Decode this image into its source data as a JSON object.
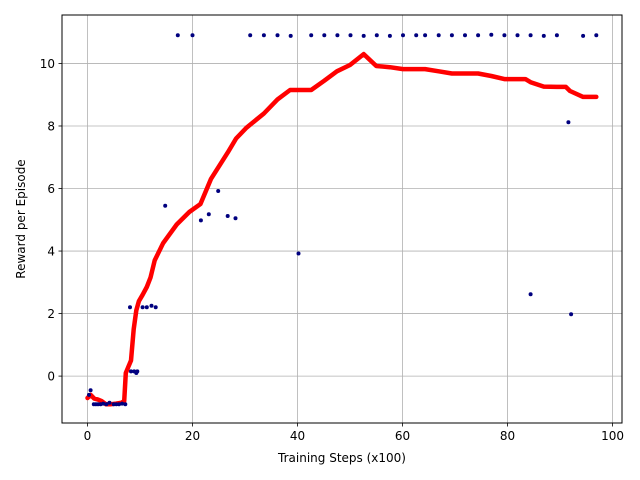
{
  "chart_data": {
    "type": "scatter",
    "title": "",
    "xlabel": "Training Steps (x100)",
    "ylabel": "Reward per Episode",
    "xlim": [
      -4.85,
      101.8
    ],
    "ylim": [
      -1.5,
      11.55
    ],
    "xticks": [
      0,
      20,
      40,
      60,
      80,
      100
    ],
    "xtick_labels": [
      "0",
      "20",
      "40",
      "60",
      "80",
      "100"
    ],
    "yticks": [
      0,
      2,
      4,
      6,
      8,
      10
    ],
    "ytick_labels": [
      "0",
      "2",
      "4",
      "6",
      "8",
      "10"
    ],
    "grid": true,
    "legend": "none",
    "series": [
      {
        "kind": "scatter",
        "color": "#00007f",
        "points": [
          [
            0.3,
            -0.6
          ],
          [
            0.6,
            -0.45
          ],
          [
            1.2,
            -0.9
          ],
          [
            1.6,
            -0.9
          ],
          [
            2.0,
            -0.9
          ],
          [
            2.5,
            -0.9
          ],
          [
            3.0,
            -0.88
          ],
          [
            3.6,
            -0.9
          ],
          [
            4.2,
            -0.85
          ],
          [
            5.0,
            -0.9
          ],
          [
            5.5,
            -0.9
          ],
          [
            6.0,
            -0.9
          ],
          [
            6.6,
            -0.88
          ],
          [
            7.2,
            -0.9
          ],
          [
            8.1,
            2.2
          ],
          [
            8.3,
            0.15
          ],
          [
            8.9,
            0.15
          ],
          [
            9.3,
            0.1
          ],
          [
            9.5,
            0.15
          ],
          [
            10.5,
            2.2
          ],
          [
            11.3,
            2.2
          ],
          [
            12.2,
            2.25
          ],
          [
            13.0,
            2.2
          ],
          [
            14.8,
            5.45
          ],
          [
            17.2,
            10.9
          ],
          [
            20.0,
            10.9
          ],
          [
            21.6,
            4.98
          ],
          [
            23.1,
            5.18
          ],
          [
            24.9,
            5.92
          ],
          [
            26.7,
            5.12
          ],
          [
            28.2,
            5.05
          ],
          [
            31.0,
            10.9
          ],
          [
            33.6,
            10.9
          ],
          [
            36.2,
            10.9
          ],
          [
            38.7,
            10.88
          ],
          [
            40.2,
            3.92
          ],
          [
            42.6,
            10.9
          ],
          [
            45.1,
            10.9
          ],
          [
            47.6,
            10.9
          ],
          [
            50.1,
            10.9
          ],
          [
            52.6,
            10.88
          ],
          [
            55.1,
            10.9
          ],
          [
            57.6,
            10.88
          ],
          [
            60.1,
            10.9
          ],
          [
            62.6,
            10.9
          ],
          [
            64.3,
            10.9
          ],
          [
            66.9,
            10.9
          ],
          [
            69.4,
            10.9
          ],
          [
            71.9,
            10.9
          ],
          [
            74.4,
            10.9
          ],
          [
            76.9,
            10.92
          ],
          [
            79.4,
            10.9
          ],
          [
            81.9,
            10.9
          ],
          [
            84.4,
            2.62
          ],
          [
            84.4,
            10.9
          ],
          [
            86.9,
            10.88
          ],
          [
            89.4,
            10.9
          ],
          [
            91.6,
            8.12
          ],
          [
            92.1,
            1.98
          ],
          [
            94.4,
            10.88
          ],
          [
            96.9,
            10.9
          ]
        ]
      },
      {
        "kind": "line",
        "color": "#ff0000",
        "points": [
          [
            0,
            -0.7
          ],
          [
            0.6,
            -0.6
          ],
          [
            1.3,
            -0.72
          ],
          [
            2.0,
            -0.75
          ],
          [
            2.7,
            -0.8
          ],
          [
            3.5,
            -0.9
          ],
          [
            4.5,
            -0.9
          ],
          [
            5.5,
            -0.88
          ],
          [
            6.5,
            -0.85
          ],
          [
            7.0,
            -0.8
          ],
          [
            7.3,
            0.1
          ],
          [
            7.8,
            0.3
          ],
          [
            8.3,
            0.5
          ],
          [
            8.8,
            1.5
          ],
          [
            9.3,
            2.1
          ],
          [
            9.8,
            2.4
          ],
          [
            10.5,
            2.6
          ],
          [
            11.3,
            2.85
          ],
          [
            12.0,
            3.15
          ],
          [
            12.8,
            3.7
          ],
          [
            14.4,
            4.25
          ],
          [
            17.0,
            4.85
          ],
          [
            19.4,
            5.25
          ],
          [
            21.5,
            5.5
          ],
          [
            23.5,
            6.3
          ],
          [
            26.7,
            7.15
          ],
          [
            28.3,
            7.6
          ],
          [
            30.3,
            7.95
          ],
          [
            33.6,
            8.4
          ],
          [
            36.2,
            8.85
          ],
          [
            38.6,
            9.15
          ],
          [
            41.1,
            9.15
          ],
          [
            42.6,
            9.15
          ],
          [
            45.1,
            9.45
          ],
          [
            47.5,
            9.75
          ],
          [
            50.0,
            9.95
          ],
          [
            52.6,
            10.3
          ],
          [
            55.0,
            9.92
          ],
          [
            57.6,
            9.88
          ],
          [
            60.1,
            9.82
          ],
          [
            62.6,
            9.82
          ],
          [
            64.3,
            9.82
          ],
          [
            66.9,
            9.75
          ],
          [
            69.4,
            9.68
          ],
          [
            71.9,
            9.68
          ],
          [
            74.4,
            9.68
          ],
          [
            76.9,
            9.6
          ],
          [
            79.4,
            9.5
          ],
          [
            81.8,
            9.5
          ],
          [
            83.4,
            9.5
          ],
          [
            84.4,
            9.4
          ],
          [
            86.9,
            9.26
          ],
          [
            89.4,
            9.25
          ],
          [
            91.1,
            9.25
          ],
          [
            91.9,
            9.12
          ],
          [
            94.4,
            8.93
          ],
          [
            96.9,
            8.93
          ]
        ]
      }
    ]
  }
}
